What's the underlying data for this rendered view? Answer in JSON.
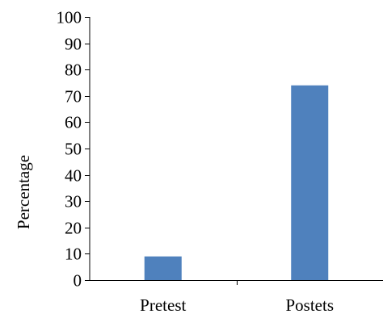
{
  "chart_data": {
    "type": "bar",
    "title": "",
    "xlabel": "",
    "ylabel": "Percentage",
    "categories": [
      "Pretest",
      "Postets"
    ],
    "values": [
      9,
      74
    ],
    "ylim": [
      0,
      100
    ],
    "yticks": [
      0,
      10,
      20,
      30,
      40,
      50,
      60,
      70,
      80,
      90,
      100
    ],
    "grid": false,
    "legend": "none",
    "bar_color": "#4F81BD",
    "axis_color": "#000000"
  }
}
